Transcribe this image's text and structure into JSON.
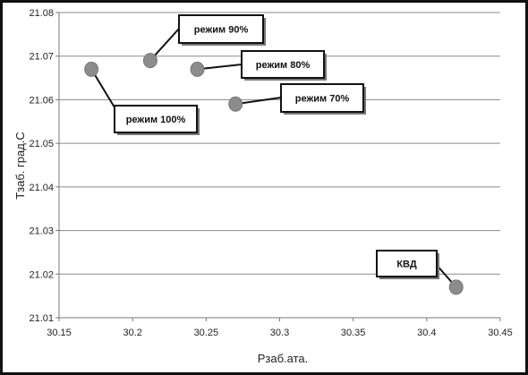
{
  "chart_data": {
    "type": "scatter",
    "title": "",
    "xlabel": "Рзаб.ата.",
    "ylabel": "Тзаб. град.С",
    "xlim": [
      30.15,
      30.45
    ],
    "ylim": [
      21.01,
      21.08
    ],
    "x_ticks": [
      "30.15",
      "30.2",
      "30.25",
      "30.3",
      "30.35",
      "30.4",
      "30.45"
    ],
    "y_ticks": [
      "21.01",
      "21.02",
      "21.03",
      "21.04",
      "21.05",
      "21.06",
      "21.07",
      "21.08"
    ],
    "grid": "horizontal",
    "marker_color": "#8c8c8c",
    "points": [
      {
        "x": 30.172,
        "y": 21.067,
        "label": "режим 100%"
      },
      {
        "x": 30.212,
        "y": 21.069,
        "label": "режим 90%"
      },
      {
        "x": 30.244,
        "y": 21.067,
        "label": "режим 80%"
      },
      {
        "x": 30.27,
        "y": 21.059,
        "label": "режим 70%"
      },
      {
        "x": 30.42,
        "y": 21.017,
        "label": "КВД"
      }
    ]
  }
}
